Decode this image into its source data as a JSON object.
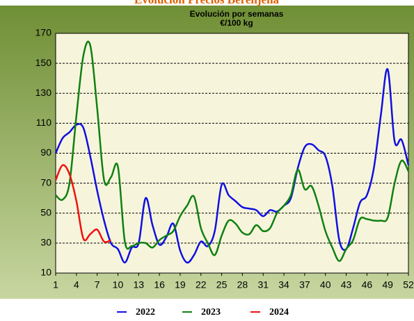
{
  "chart_data": {
    "type": "line",
    "page_title": "Evolución Precios Berenjena",
    "title": "Evolución por semanas",
    "subtitle": "€/100 kg",
    "x": [
      1,
      2,
      3,
      4,
      5,
      6,
      7,
      8,
      9,
      10,
      11,
      12,
      13,
      14,
      15,
      16,
      17,
      18,
      19,
      20,
      21,
      22,
      23,
      24,
      25,
      26,
      27,
      28,
      29,
      30,
      31,
      32,
      33,
      34,
      35,
      36,
      37,
      38,
      39,
      40,
      41,
      42,
      43,
      44,
      45,
      46,
      47,
      48,
      49,
      50,
      51,
      52
    ],
    "xlim": [
      1,
      52
    ],
    "xticks": [
      1,
      4,
      7,
      10,
      13,
      16,
      19,
      22,
      25,
      28,
      31,
      34,
      37,
      40,
      43,
      46,
      49,
      52
    ],
    "ylim": [
      10,
      170
    ],
    "yticks": [
      10,
      30,
      50,
      70,
      90,
      110,
      130,
      150,
      170
    ],
    "grid": true,
    "legend": "bottom",
    "series": [
      {
        "name": "2022",
        "color": "#1010e0",
        "values": [
          90,
          100,
          104,
          109,
          107,
          88,
          65,
          45,
          30,
          26,
          17,
          27,
          30,
          60,
          42,
          29,
          34,
          43,
          25,
          17,
          22,
          31,
          28,
          38,
          69,
          62,
          58,
          54,
          53,
          52,
          48,
          52,
          51,
          55,
          60,
          80,
          94,
          96,
          92,
          88,
          68,
          32,
          26,
          40,
          57,
          62,
          80,
          115,
          146,
          98,
          99,
          82
        ]
      },
      {
        "name": "2023",
        "color": "#108010",
        "values": [
          62,
          59,
          70,
          115,
          155,
          162,
          120,
          72,
          74,
          81,
          31,
          28,
          30,
          30,
          27,
          32,
          35,
          38,
          48,
          55,
          61,
          40,
          30,
          22,
          35,
          45,
          43,
          37,
          36,
          42,
          38,
          40,
          50,
          55,
          62,
          79,
          66,
          68,
          55,
          38,
          27,
          18,
          26,
          32,
          46,
          46,
          45,
          45,
          47,
          70,
          85,
          78
        ]
      },
      {
        "name": "2024",
        "color": "#f01010",
        "values": [
          72,
          82,
          76,
          58,
          33,
          36,
          39,
          31,
          32,
          null,
          null,
          null,
          null,
          null,
          null,
          null,
          null,
          null,
          null,
          null,
          null,
          null,
          null,
          null,
          null,
          null,
          null,
          null,
          null,
          null,
          null,
          null,
          null,
          null,
          null,
          null,
          null,
          null,
          null,
          null,
          null,
          null,
          null,
          null,
          null,
          null,
          null,
          null,
          null,
          null,
          null,
          null
        ]
      }
    ]
  }
}
